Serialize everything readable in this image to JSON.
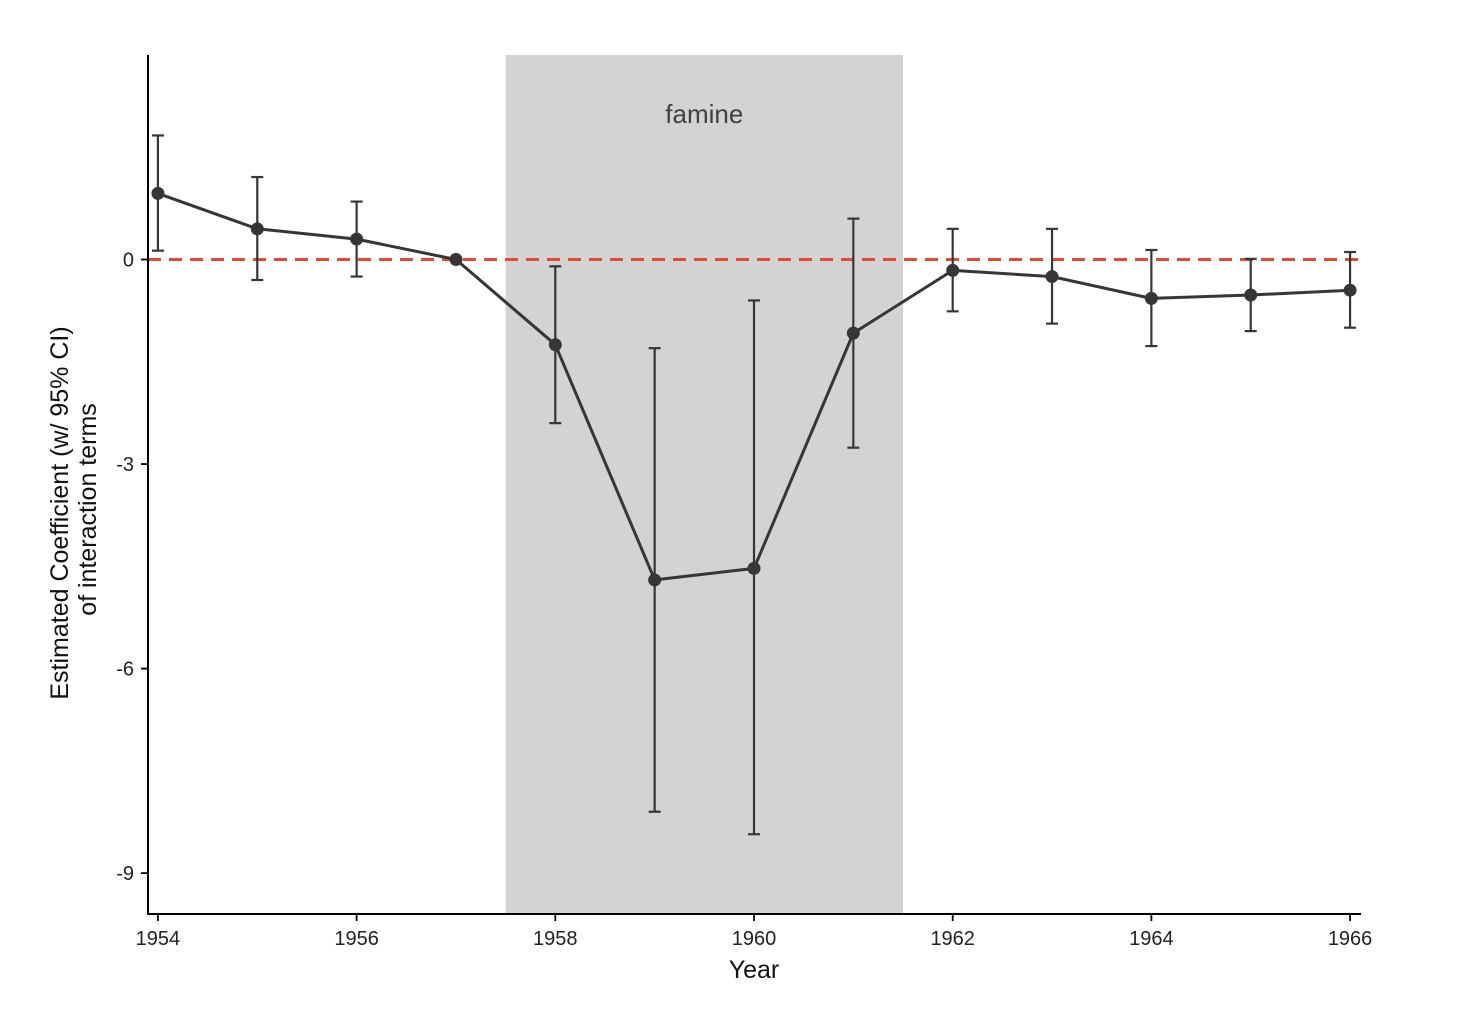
{
  "chart_data": {
    "type": "line",
    "xlabel": "Year",
    "ylabel_lines": [
      "Estimated Coefficient (w/ 95% CI)",
      "of interaction terms"
    ],
    "x_ticks": [
      1954,
      1956,
      1958,
      1960,
      1962,
      1964,
      1966
    ],
    "y_ticks": [
      0,
      -3,
      -6,
      -9
    ],
    "xlim": [
      1953.9,
      1966.1
    ],
    "ylim": [
      -9.6,
      3.0
    ],
    "shaded_region": {
      "x_start": 1957.5,
      "x_end": 1961.5,
      "label": "famine",
      "color": "#d3d3d3"
    },
    "reference_line": {
      "y": 0,
      "color": "#e34a33",
      "style": "dashed"
    },
    "series": [
      {
        "color": "#363636",
        "points": [
          {
            "x": 1954,
            "y": 0.97,
            "lo": 0.13,
            "hi": 1.82
          },
          {
            "x": 1955,
            "y": 0.45,
            "lo": -0.3,
            "hi": 1.21
          },
          {
            "x": 1956,
            "y": 0.3,
            "lo": -0.25,
            "hi": 0.85
          },
          {
            "x": 1957,
            "y": 0.0,
            "lo": 0.0,
            "hi": 0.0
          },
          {
            "x": 1958,
            "y": -1.25,
            "lo": -2.4,
            "hi": -0.1
          },
          {
            "x": 1959,
            "y": -4.7,
            "lo": -8.1,
            "hi": -1.3
          },
          {
            "x": 1960,
            "y": -4.53,
            "lo": -8.43,
            "hi": -0.6
          },
          {
            "x": 1961,
            "y": -1.08,
            "lo": -2.76,
            "hi": 0.6
          },
          {
            "x": 1962,
            "y": -0.16,
            "lo": -0.76,
            "hi": 0.45
          },
          {
            "x": 1963,
            "y": -0.25,
            "lo": -0.94,
            "hi": 0.45
          },
          {
            "x": 1964,
            "y": -0.57,
            "lo": -1.27,
            "hi": 0.14
          },
          {
            "x": 1965,
            "y": -0.52,
            "lo": -1.05,
            "hi": 0.01
          },
          {
            "x": 1966,
            "y": -0.45,
            "lo": -1.0,
            "hi": 0.11
          }
        ]
      }
    ]
  }
}
